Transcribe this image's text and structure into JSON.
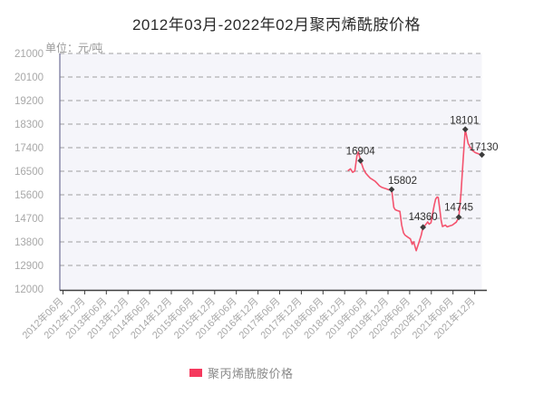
{
  "title": "2012年03月-2022年02月聚丙烯酰胺价格",
  "unit_label": "单位：元/吨",
  "legend": {
    "series_label": "聚丙烯酰胺价格"
  },
  "colors": {
    "line": "#f4536e",
    "legend_swatch": "#f5395d",
    "marker": "#3c3c3c",
    "plot_bg": "#f5f5fa",
    "grid": "#a0a0a0",
    "axis": "#3f3f3f",
    "left_border": "#6e6e96",
    "tick_text": "#a8a8a8",
    "unit_text": "#999999",
    "data_label_text": "#2f2f2f",
    "title_text": "#2b2b2b"
  },
  "chart_data": {
    "type": "line",
    "title": "2012年03月-2022年02月聚丙烯酰胺价格",
    "ylabel": "单位：元/吨",
    "ylim": [
      12000,
      21000
    ],
    "y_ticks": [
      12000,
      12900,
      13800,
      14700,
      15600,
      16500,
      17400,
      18300,
      19200,
      20100,
      21000
    ],
    "grid": "horizontal-dashed",
    "legend_position": "bottom-center",
    "x_range": {
      "start_label": "2012年03月",
      "end_label": "2022年02月",
      "months_total": 119
    },
    "x_unit": "months since 2012-03",
    "x_tick_month_offsets": [
      3,
      9,
      15,
      21,
      27,
      33,
      39,
      45,
      51,
      57,
      63,
      69,
      75,
      81,
      87,
      93,
      99,
      105,
      111,
      117
    ],
    "x_tick_labels": [
      "2012年06月",
      "2012年12月",
      "2013年06月",
      "2013年12月",
      "2014年06月",
      "2014年12月",
      "2015年06月",
      "2015年12月",
      "2016年06月",
      "2016年12月",
      "2017年06月",
      "2017年12月",
      "2018年06月",
      "2018年12月",
      "2019年06月",
      "2019年12月",
      "2020年06月",
      "2020年12月",
      "2021年06月",
      "2021年12月"
    ],
    "series": [
      {
        "name": "聚丙烯酰胺价格",
        "points": [
          [
            82.0,
            16530
          ],
          [
            82.6,
            16590
          ],
          [
            83.2,
            16460
          ],
          [
            83.8,
            16510
          ],
          [
            84.4,
            17090
          ],
          [
            84.8,
            17235
          ],
          [
            85.4,
            16904
          ],
          [
            86.2,
            16585
          ],
          [
            86.8,
            16430
          ],
          [
            87.5,
            16320
          ],
          [
            88.1,
            16235
          ],
          [
            88.7,
            16180
          ],
          [
            89.4,
            16120
          ],
          [
            90.0,
            16040
          ],
          [
            90.6,
            15945
          ],
          [
            91.2,
            15890
          ],
          [
            91.9,
            15855
          ],
          [
            92.5,
            15830
          ],
          [
            93.1,
            15795
          ],
          [
            94.0,
            15802
          ],
          [
            94.6,
            15120
          ],
          [
            95.0,
            15030
          ],
          [
            95.6,
            14995
          ],
          [
            96.3,
            14965
          ],
          [
            96.8,
            14440
          ],
          [
            97.3,
            14150
          ],
          [
            97.7,
            14060
          ],
          [
            98.5,
            13980
          ],
          [
            99.2,
            13915
          ],
          [
            99.7,
            13705
          ],
          [
            100.1,
            13805
          ],
          [
            100.8,
            13465
          ],
          [
            101.5,
            13760
          ],
          [
            102.2,
            14050
          ],
          [
            102.7,
            14360
          ],
          [
            103.3,
            14435
          ],
          [
            104.0,
            14560
          ],
          [
            104.4,
            14480
          ],
          [
            104.9,
            14530
          ],
          [
            105.4,
            14915
          ],
          [
            105.8,
            15210
          ],
          [
            106.2,
            15440
          ],
          [
            106.6,
            15515
          ],
          [
            106.9,
            15495
          ],
          [
            107.4,
            14965
          ],
          [
            107.7,
            14620
          ],
          [
            108.1,
            14385
          ],
          [
            108.9,
            14445
          ],
          [
            109.4,
            14375
          ],
          [
            110.0,
            14405
          ],
          [
            110.8,
            14440
          ],
          [
            111.9,
            14555
          ],
          [
            112.6,
            14745
          ],
          [
            113.2,
            15650
          ],
          [
            113.8,
            16900
          ],
          [
            114.4,
            18101
          ],
          [
            115.2,
            17560
          ],
          [
            116.2,
            17310
          ],
          [
            117.2,
            17210
          ],
          [
            118.1,
            17160
          ],
          [
            119.0,
            17130
          ]
        ]
      }
    ],
    "labeled_points": [
      {
        "x": 85.4,
        "value": 16904,
        "label": "16904",
        "approx_date": "2019年04月"
      },
      {
        "x": 94.0,
        "value": 15802,
        "label": "15802",
        "approx_date": "2020年01月"
      },
      {
        "x": 102.7,
        "value": 14360,
        "label": "14360",
        "approx_date": "2020年10月"
      },
      {
        "x": 112.6,
        "value": 14745,
        "label": "14745",
        "approx_date": "2021年08月"
      },
      {
        "x": 114.4,
        "value": 18101,
        "label": "18101",
        "approx_date": "2021年10月"
      },
      {
        "x": 119.0,
        "value": 17130,
        "label": "17130",
        "approx_date": "2022年02月"
      }
    ]
  }
}
